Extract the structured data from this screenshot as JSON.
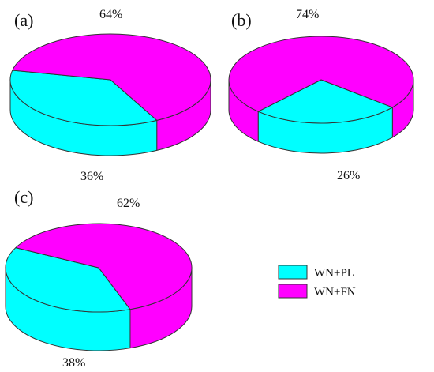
{
  "colors": {
    "WN+PL": "#00ffff",
    "WN+FN": "#ff00ff",
    "edge": "#333333"
  },
  "legend": {
    "items": [
      {
        "label": "WN+PL"
      },
      {
        "label": "WN+FN"
      }
    ]
  },
  "chart_data": [
    {
      "type": "pie",
      "panel": "(a)",
      "categories": [
        "WN+PL",
        "WN+FN"
      ],
      "values": [
        36,
        64
      ],
      "labels": [
        "36%",
        "64%"
      ]
    },
    {
      "type": "pie",
      "panel": "(b)",
      "categories": [
        "WN+PL",
        "WN+FN"
      ],
      "values": [
        26,
        74
      ],
      "labels": [
        "26%",
        "74%"
      ]
    },
    {
      "type": "pie",
      "panel": "(c)",
      "categories": [
        "WN+PL",
        "WN+FN"
      ],
      "values": [
        38,
        62
      ],
      "labels": [
        "38%",
        "62%"
      ]
    }
  ]
}
